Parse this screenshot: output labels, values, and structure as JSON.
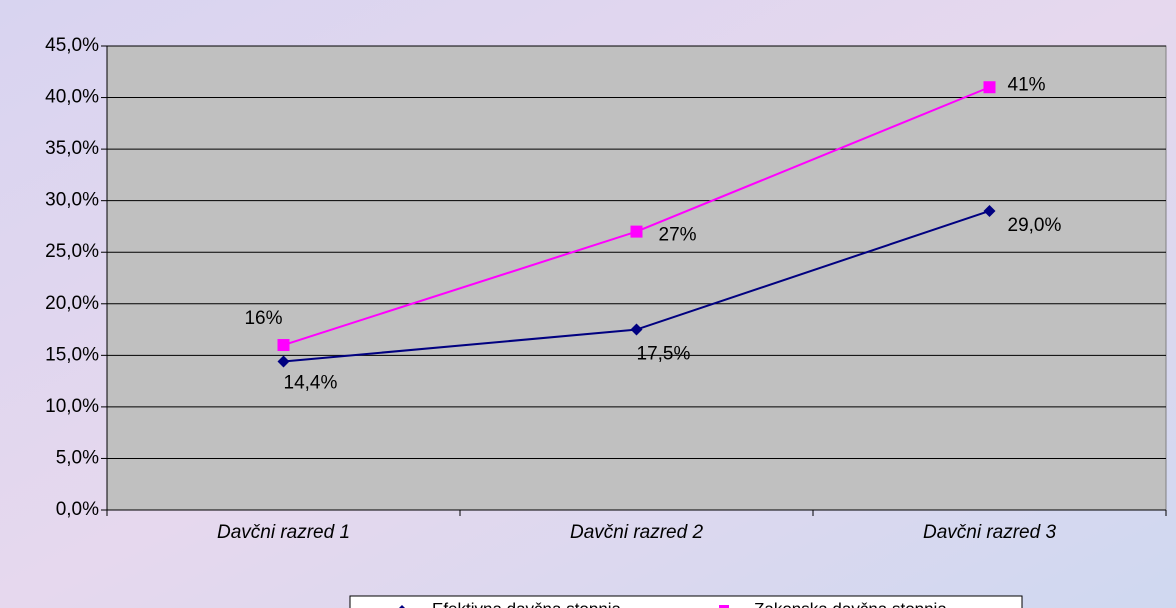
{
  "chart_data": {
    "type": "line",
    "categories": [
      "Davčni razred 1",
      "Davčni razred 2",
      "Davčni razred 3"
    ],
    "series": [
      {
        "name": "Efektivna davčna stopnja",
        "color": "#000080",
        "values": [
          14.4,
          17.5,
          29.0
        ],
        "value_labels": [
          "14,4%",
          "17,5%",
          "29,0%"
        ]
      },
      {
        "name": "Zakonska davčna stopnja",
        "color": "#ff00ff",
        "values": [
          16,
          27,
          41
        ],
        "value_labels": [
          "16%",
          "27%",
          "41%"
        ]
      }
    ],
    "ylim": [
      0,
      45
    ],
    "yticks": [
      {
        "value": 0,
        "label": "0,0%"
      },
      {
        "value": 5,
        "label": "5,0%"
      },
      {
        "value": 10,
        "label": "10,0%"
      },
      {
        "value": 15,
        "label": "15,0%"
      },
      {
        "value": 20,
        "label": "20,0%"
      },
      {
        "value": 25,
        "label": "25,0%"
      },
      {
        "value": 30,
        "label": "30,0%"
      },
      {
        "value": 35,
        "label": "35,0%"
      },
      {
        "value": 40,
        "label": "40,0%"
      },
      {
        "value": 45,
        "label": "45,0%"
      }
    ],
    "grid": true
  }
}
